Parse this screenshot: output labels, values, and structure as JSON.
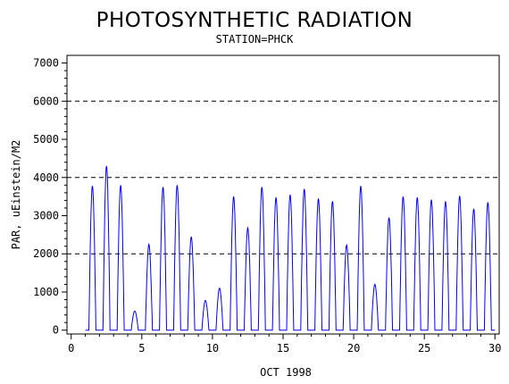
{
  "chart_data": {
    "type": "line",
    "title": "PHOTOSYNTHETIC RADIATION",
    "subtitle": "STATION=PHCK",
    "xlabel": "OCT 1998",
    "ylabel": "PAR, uEinstein/M2",
    "xlim": [
      -0.3,
      30.3
    ],
    "ylim": [
      -100,
      7200
    ],
    "xticks": [
      0,
      5,
      10,
      15,
      20,
      25,
      30
    ],
    "yticks": [
      0,
      1000,
      2000,
      3000,
      4000,
      5000,
      6000,
      7000
    ],
    "reference_lines": [
      2000,
      4000,
      6000
    ],
    "grid": false,
    "legend": "none",
    "series_color": "#0000ff",
    "daily_peaks": [
      {
        "day": 1,
        "peak": 3780
      },
      {
        "day": 2,
        "peak": 4300
      },
      {
        "day": 3,
        "peak": 3800
      },
      {
        "day": 4,
        "peak": 500
      },
      {
        "day": 5,
        "peak": 2250
      },
      {
        "day": 6,
        "peak": 3750
      },
      {
        "day": 7,
        "peak": 3800
      },
      {
        "day": 8,
        "peak": 2450
      },
      {
        "day": 9,
        "peak": 780
      },
      {
        "day": 10,
        "peak": 1100
      },
      {
        "day": 11,
        "peak": 3500
      },
      {
        "day": 12,
        "peak": 2680
      },
      {
        "day": 13,
        "peak": 3750
      },
      {
        "day": 14,
        "peak": 3480
      },
      {
        "day": 15,
        "peak": 3550
      },
      {
        "day": 16,
        "peak": 3700
      },
      {
        "day": 17,
        "peak": 3450
      },
      {
        "day": 18,
        "peak": 3380
      },
      {
        "day": 19,
        "peak": 2230
      },
      {
        "day": 20,
        "peak": 3780
      },
      {
        "day": 21,
        "peak": 1200
      },
      {
        "day": 22,
        "peak": 2950
      },
      {
        "day": 23,
        "peak": 3500
      },
      {
        "day": 24,
        "peak": 3480
      },
      {
        "day": 25,
        "peak": 3420
      },
      {
        "day": 26,
        "peak": 3380
      },
      {
        "day": 27,
        "peak": 3520
      },
      {
        "day": 28,
        "peak": 3180
      },
      {
        "day": 29,
        "peak": 3350
      }
    ]
  }
}
